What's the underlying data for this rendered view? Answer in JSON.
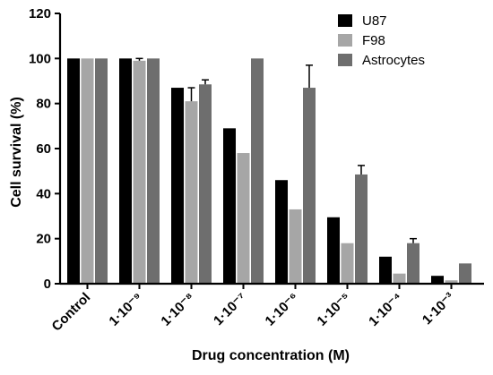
{
  "chart_data": {
    "type": "bar",
    "title": "",
    "xlabel": "Drug concentration (M)",
    "ylabel": "Cell survival (%)",
    "ylim": [
      0,
      120
    ],
    "yticks": [
      "0",
      "20",
      "40",
      "60",
      "80",
      "100",
      "120"
    ],
    "categories": [
      "Control",
      "1·10⁻⁹",
      "1·10⁻⁸",
      "1·10⁻⁷",
      "1·10⁻⁶",
      "1·10⁻⁵",
      "1·10⁻⁴",
      "1·10⁻³"
    ],
    "series": [
      {
        "name": "U87",
        "color": "#000000",
        "values": [
          100,
          100,
          87,
          69,
          46,
          29.5,
          12,
          3.5
        ],
        "errors": [
          0,
          0,
          0,
          0,
          0,
          0,
          0,
          0
        ]
      },
      {
        "name": "F98",
        "color": "#a6a6a6",
        "values": [
          100,
          99,
          81,
          58,
          33,
          18,
          4.5,
          1.5
        ],
        "errors": [
          0,
          1,
          6,
          0,
          0,
          0,
          0,
          0
        ]
      },
      {
        "name": "Astrocytes",
        "color": "#6e6e6e",
        "values": [
          100,
          100,
          88.5,
          100,
          87,
          48.5,
          18,
          9
        ],
        "errors": [
          0,
          0,
          2,
          0,
          10,
          4,
          2,
          0
        ]
      }
    ],
    "legend_position": "top-right",
    "grid": false
  }
}
